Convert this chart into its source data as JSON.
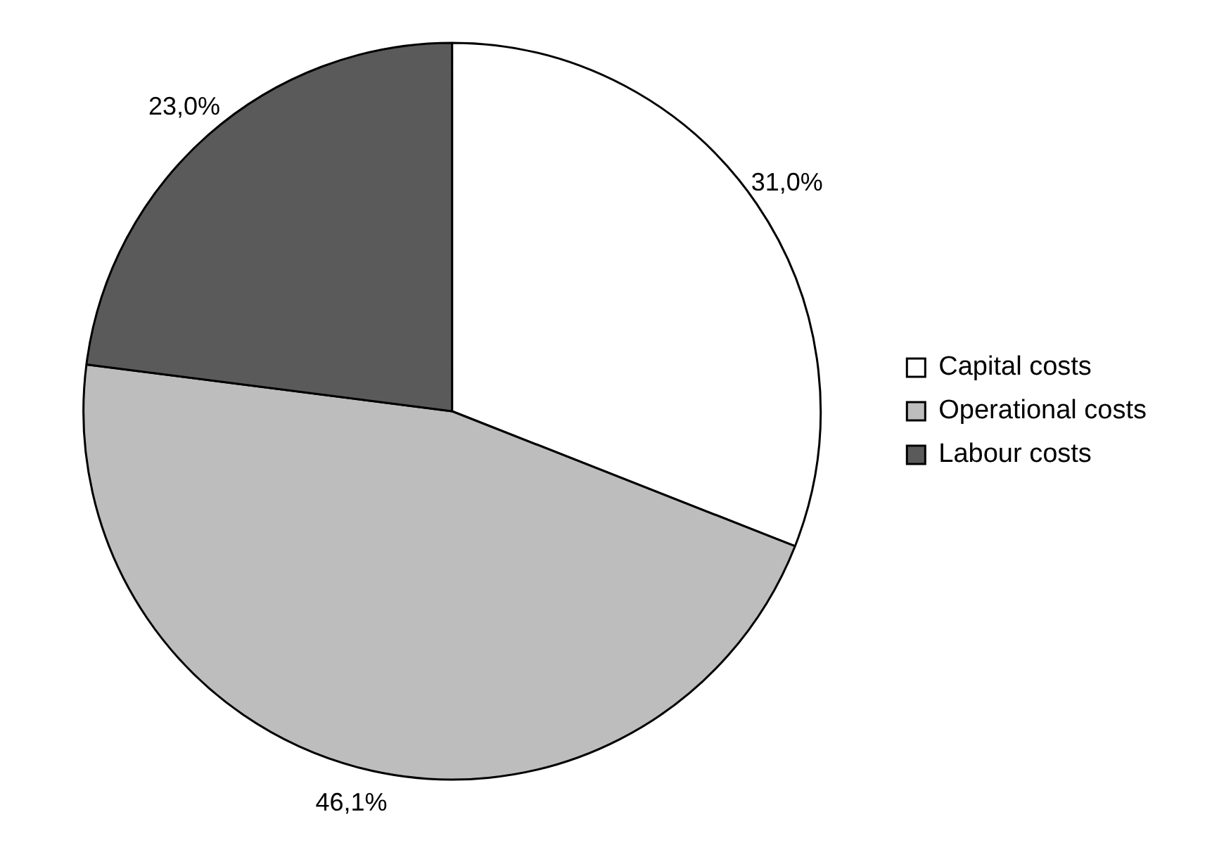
{
  "chart_data": {
    "type": "pie",
    "categories": [
      "Capital costs",
      "Operational costs",
      "Labour costs"
    ],
    "values": [
      31.0,
      46.1,
      23.0
    ],
    "colors": [
      "#ffffff",
      "#bdbdbd",
      "#5a5a5a"
    ],
    "value_labels": [
      "31,0%",
      "46,1%",
      "23,0%"
    ],
    "legend": "right"
  }
}
